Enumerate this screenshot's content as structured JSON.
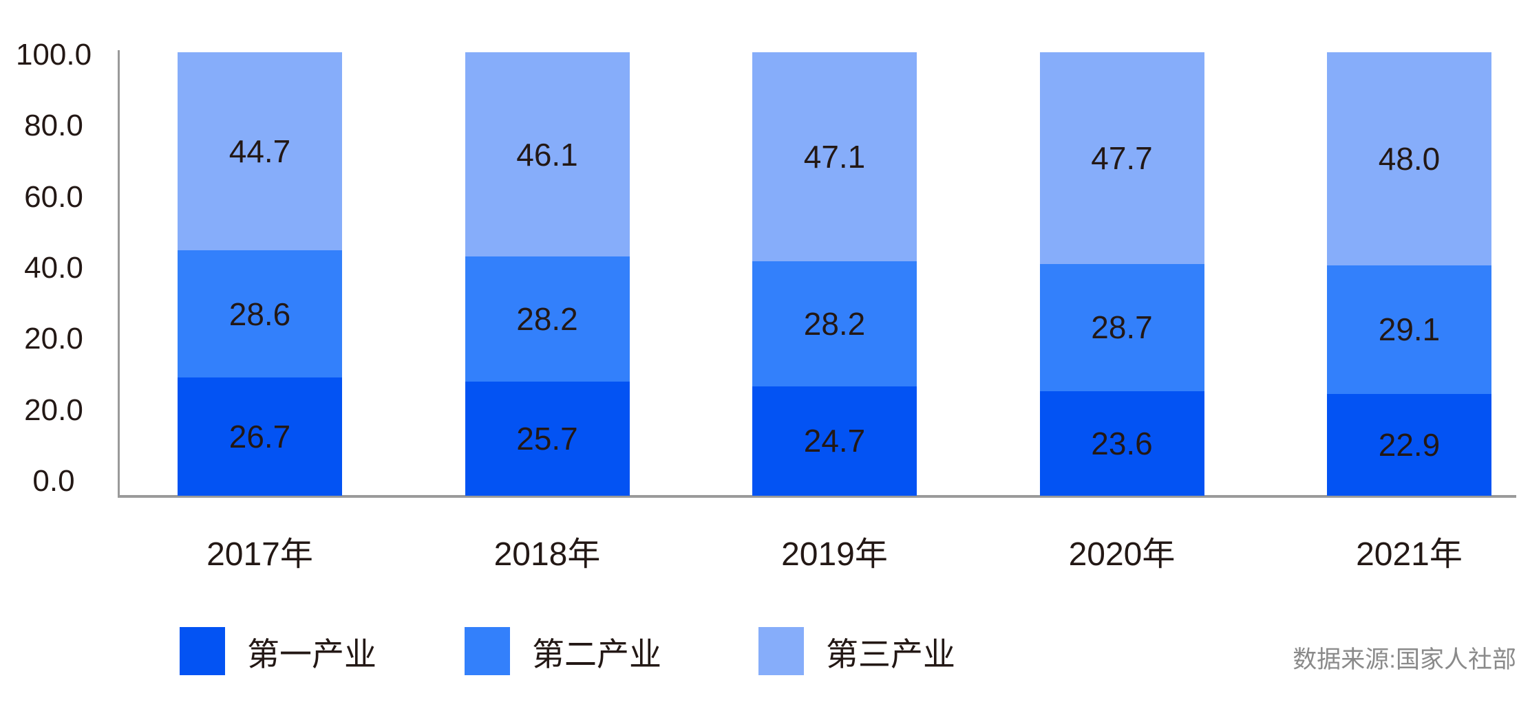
{
  "chart_data": {
    "type": "bar",
    "stacked": true,
    "categories": [
      "2017年",
      "2018年",
      "2019年",
      "2020年",
      "2021年"
    ],
    "series": [
      {
        "name": "第一产业",
        "color": "#0353F3",
        "values": [
          26.7,
          25.7,
          24.7,
          23.6,
          22.9
        ]
      },
      {
        "name": "第二产业",
        "color": "#3380FB",
        "values": [
          28.6,
          28.2,
          28.2,
          28.7,
          29.1
        ]
      },
      {
        "name": "第三产业",
        "color": "#86ADFA",
        "values": [
          44.7,
          46.1,
          47.1,
          47.7,
          48.0
        ]
      }
    ],
    "y_axis_tick_labels": [
      "100.0",
      "80.0",
      "60.0",
      "40.0",
      "20.0",
      "20.0",
      "0.0"
    ],
    "ylim": [
      0,
      100
    ],
    "value_decimals": 1,
    "grid": false,
    "legend_position": "bottom",
    "source_note": "数据来源:国家人社部",
    "colors": {
      "axis_line": "#9A9A9A",
      "label_text": "#231815",
      "source_text": "#8A8A8A"
    }
  }
}
